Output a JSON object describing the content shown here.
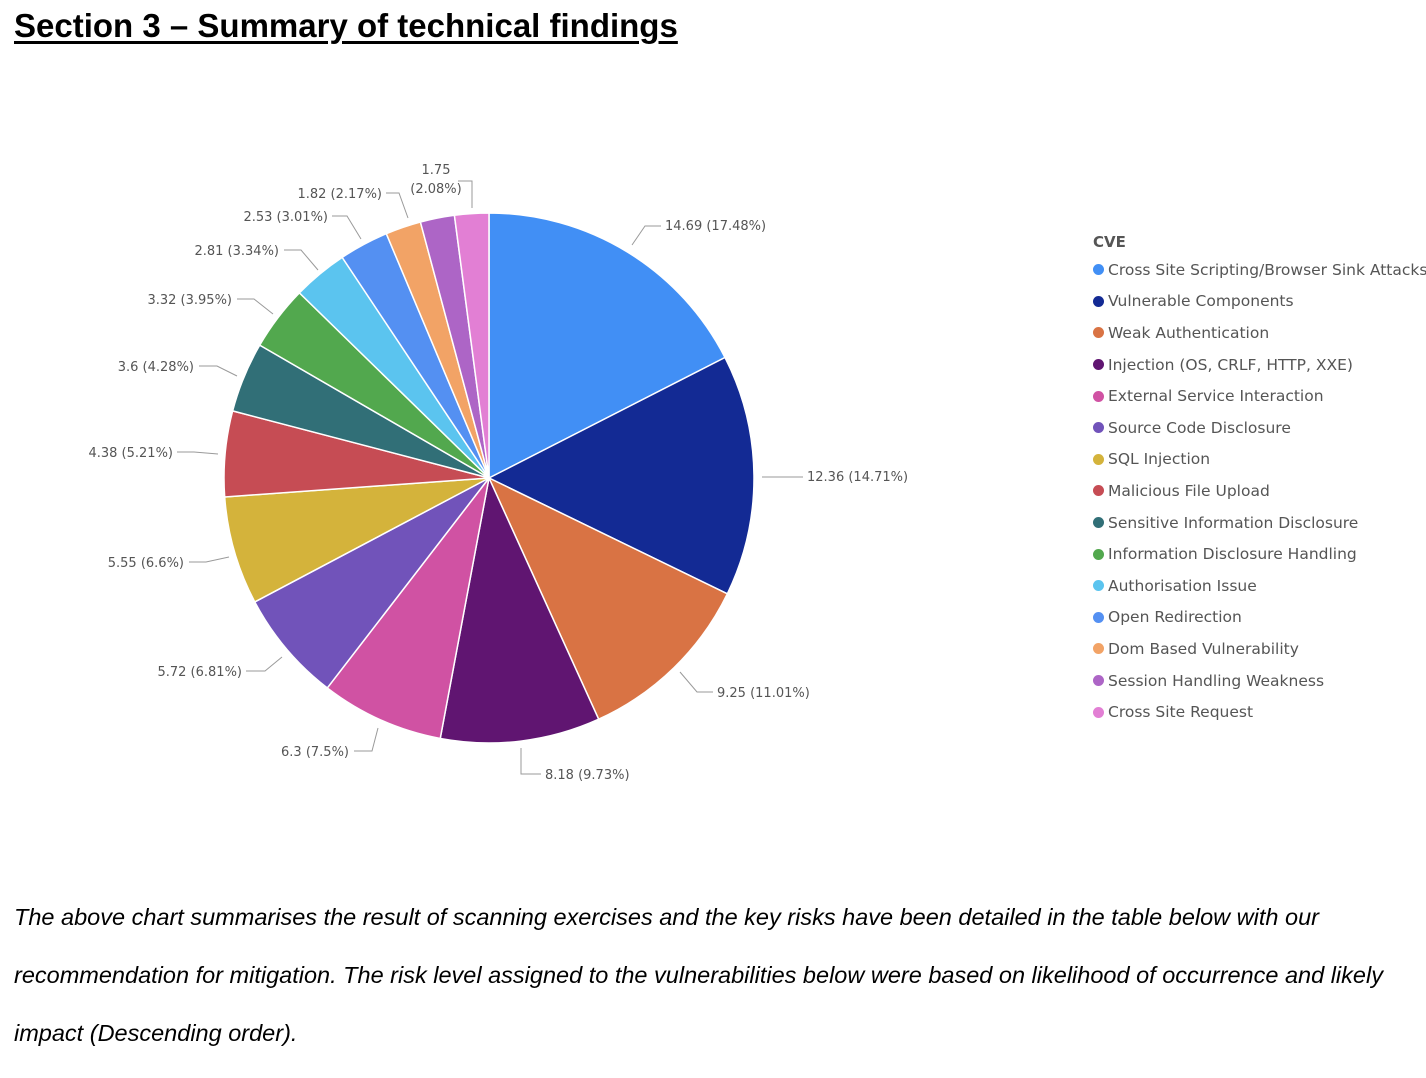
{
  "section_title": "Section 3 – Summary of technical findings",
  "paragraph": "The above chart summarises the result of scanning exercises and the key risks have been detailed in the table below with our recommendation for mitigation. The risk level assigned to the vulnerabilities below were based on likelihood of occurrence and likely impact (Descending order).",
  "chart_data": {
    "type": "pie",
    "legend_title": "CVE",
    "legend_position": "right",
    "categories": [
      "Cross Site Scripting/Browser Sink Attacks",
      "Vulnerable Components",
      "Weak Authentication",
      "Injection (OS, CRLF, HTTP, XXE)",
      "External Service Interaction",
      "Source Code Disclosure",
      "SQL Injection",
      "Malicious File Upload",
      "Sensitive Information Disclosure",
      "Information Disclosure Handling",
      "Authorisation Issue",
      "Open Redirection",
      "Dom Based Vulnerability",
      "Session Handling Weakness",
      "Cross Site Request"
    ],
    "values": [
      14.69,
      12.36,
      9.25,
      8.18,
      6.3,
      5.72,
      5.55,
      4.38,
      3.6,
      3.32,
      2.81,
      2.53,
      1.82,
      1.75,
      1.75
    ],
    "data_labels": [
      "14.69 (17.48%)",
      "12.36 (14.71%)",
      "9.25 (11.01%)",
      "8.18 (9.73%)",
      "6.3 (7.5%)",
      "5.72 (6.81%)",
      "5.55 (6.6%)",
      "4.38 (5.21%)",
      "3.6 (4.28%)",
      "3.32 (3.95%)",
      "2.81 (3.34%)",
      "2.53 (3.01%)",
      "1.82 (2.17%)",
      "1.75 (2.08%)",
      ""
    ],
    "colors": [
      "#418ff5",
      "#132a94",
      "#d97344",
      "#601571",
      "#d052a3",
      "#7153ba",
      "#d4b33b",
      "#c64c54",
      "#316f77",
      "#52a84e",
      "#5bc4ef",
      "#5490f2",
      "#f2a366",
      "#ad65c6",
      "#e27fd4"
    ]
  }
}
